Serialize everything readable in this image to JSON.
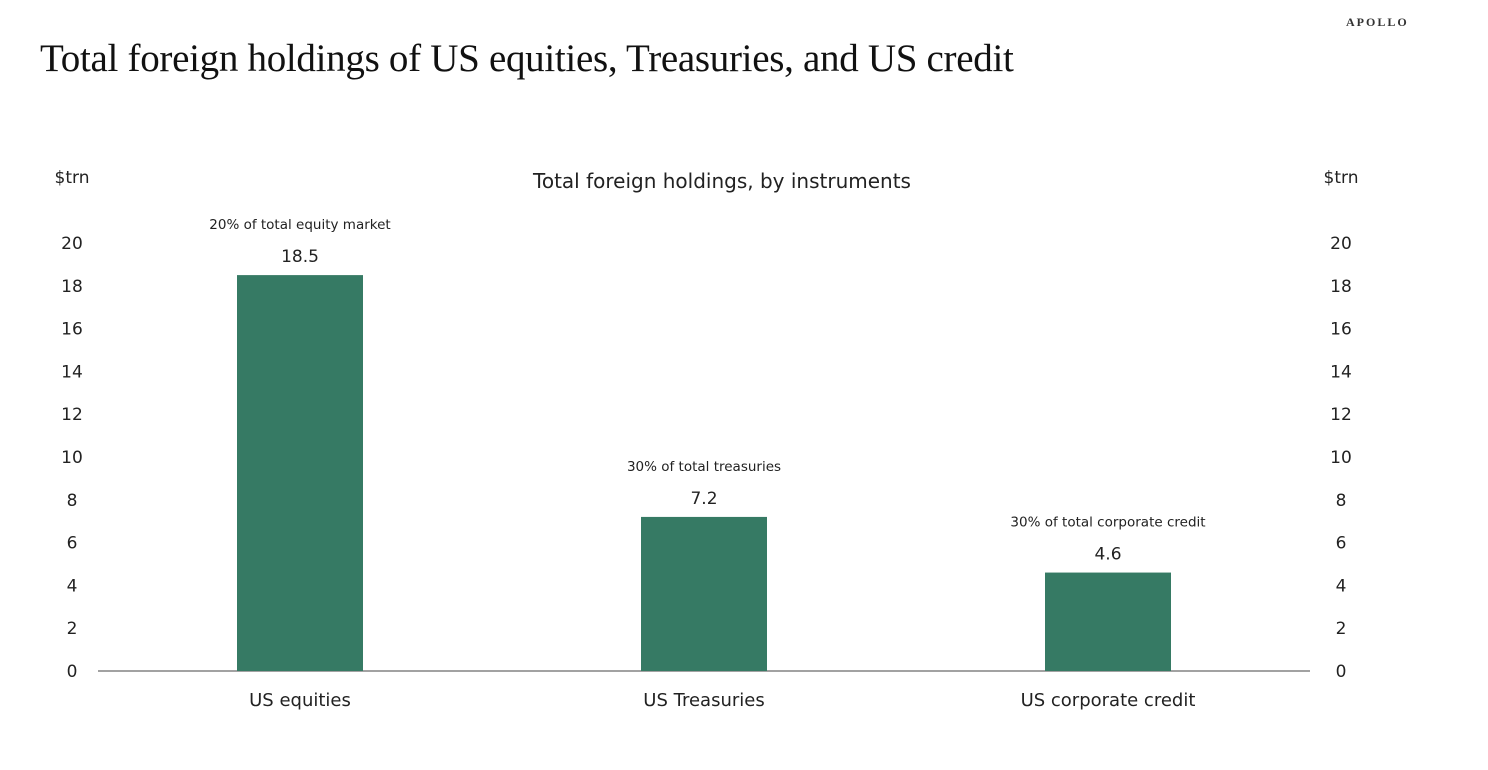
{
  "page": {
    "title": "Total foreign holdings of US equities, Treasuries, and US credit",
    "logo": "APOLLO"
  },
  "colors": {
    "bar": "#367a64",
    "axis": "#444444"
  },
  "chart_data": {
    "type": "bar",
    "title": "Total foreign holdings, by instruments",
    "ylabel_left": "$trn",
    "ylabel_right": "$trn",
    "ylim": [
      0,
      20
    ],
    "yticks": [
      0,
      2,
      4,
      6,
      8,
      10,
      12,
      14,
      16,
      18,
      20
    ],
    "categories": [
      "US equities",
      "US Treasuries",
      "US corporate credit"
    ],
    "values": [
      18.5,
      7.2,
      4.6
    ],
    "value_labels": [
      "18.5",
      "7.2",
      "4.6"
    ],
    "annotations": [
      "20% of total equity market",
      "30% of total treasuries",
      "30% of total corporate credit"
    ],
    "legend": "none",
    "grid": false
  }
}
